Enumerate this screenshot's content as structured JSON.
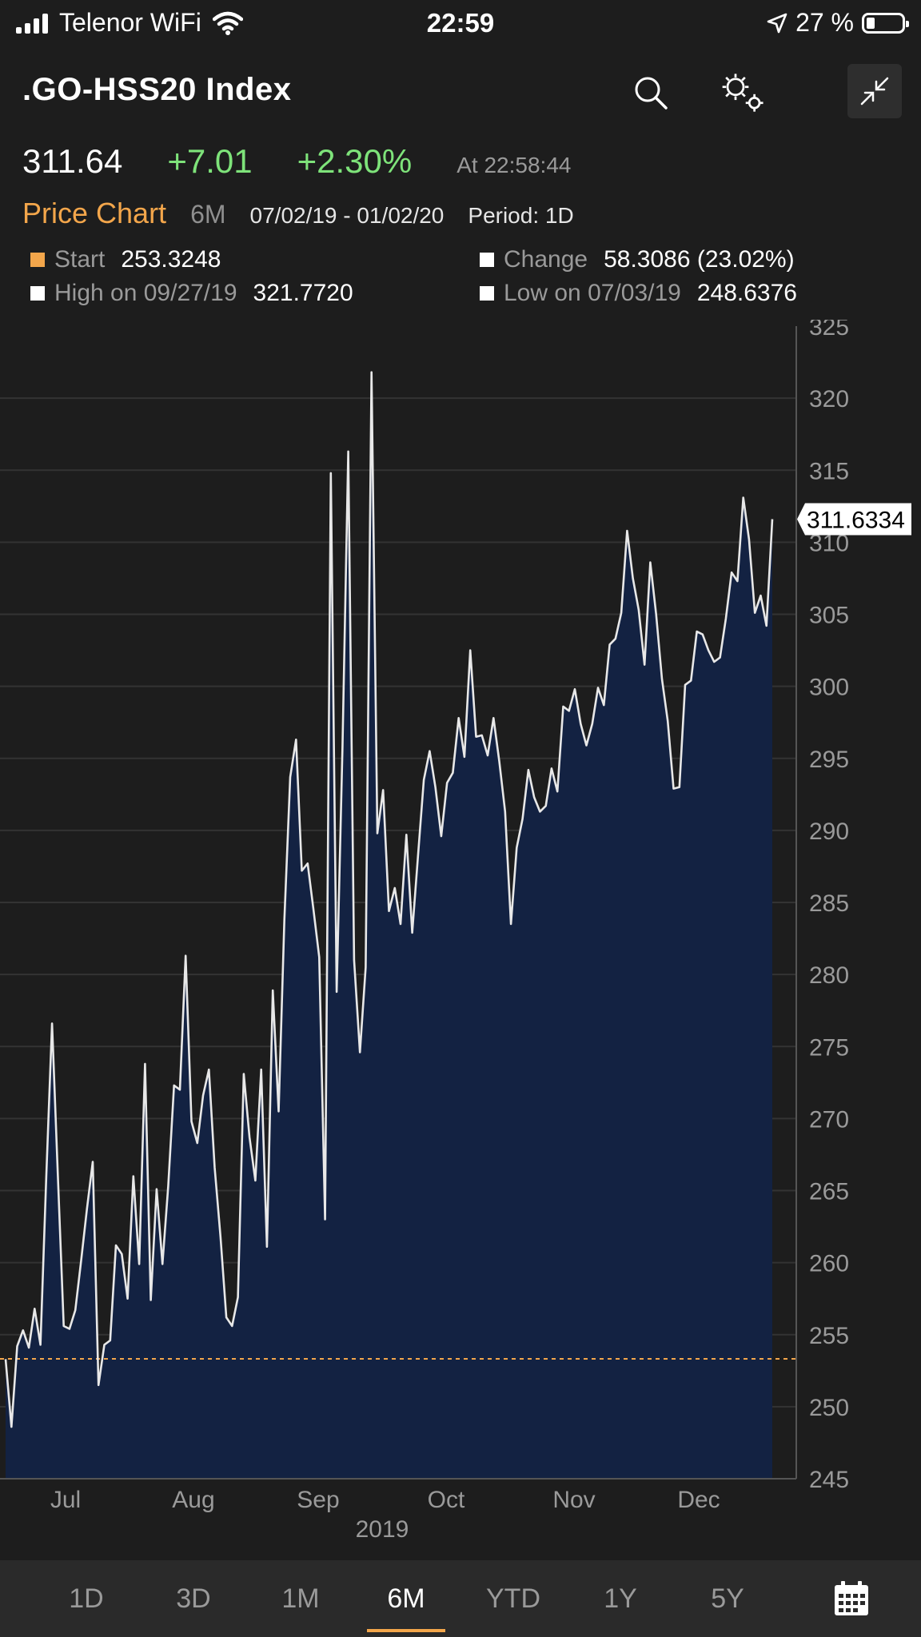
{
  "status_bar": {
    "carrier": "Telenor WiFi",
    "time": "22:59",
    "battery_pct": "27 %"
  },
  "header": {
    "title": ".GO-HSS20 Index"
  },
  "quote": {
    "last": "311.64",
    "change": "+7.01",
    "change_pct": "+2.30%",
    "as_of": "At 22:58:44"
  },
  "price_chart": {
    "title": "Price Chart",
    "range": "6M",
    "dates": "07/02/19 - 01/02/20",
    "period": "Period: 1D",
    "start_label": "Start",
    "start_value": "253.3248",
    "change_label": "Change",
    "change_value": "58.3086 (23.02%)",
    "high_label": "High on 09/27/19",
    "high_value": "321.7720",
    "low_label": "Low on 07/03/19",
    "low_value": "248.6376"
  },
  "colors": {
    "accent": "#f3a64b",
    "up": "#7ee37a",
    "fill": "#132242",
    "line": "#e8e8e8"
  },
  "chart_data": {
    "type": "area",
    "ylim": [
      245,
      325
    ],
    "y_ticks": [
      "325",
      "320",
      "315",
      "310",
      "305",
      "300",
      "295",
      "290",
      "285",
      "280",
      "275",
      "270",
      "265",
      "260",
      "255",
      "250",
      "245"
    ],
    "x_labels": [
      "Jul",
      "Aug",
      "Sep",
      "Oct",
      "Nov",
      "Dec"
    ],
    "x_year": "2019",
    "start_reference": 253.3248,
    "last_value_label": "311.6334",
    "values": [
      253.3,
      248.6,
      254.2,
      255.3,
      254.1,
      256.8,
      254.3,
      266.0,
      276.6,
      266.0,
      255.6,
      255.4,
      256.7,
      260.1,
      263.7,
      267.0,
      251.5,
      254.3,
      254.6,
      261.2,
      260.6,
      257.5,
      266.0,
      259.9,
      273.8,
      257.4,
      265.1,
      259.9,
      265.3,
      272.3,
      272.0,
      281.3,
      269.8,
      268.3,
      271.6,
      273.4,
      266.6,
      261.8,
      256.2,
      255.6,
      257.6,
      273.1,
      268.7,
      265.7,
      273.4,
      261.1,
      278.9,
      270.5,
      283.8,
      293.7,
      296.3,
      287.2,
      287.7,
      284.5,
      281.2,
      263.0,
      314.8,
      278.8,
      295.8,
      316.3,
      281.0,
      274.6,
      280.5,
      321.8,
      289.8,
      292.8,
      284.4,
      286.0,
      283.5,
      289.7,
      282.9,
      288.2,
      293.5,
      295.5,
      293.0,
      289.6,
      293.3,
      294.0,
      297.8,
      295.1,
      302.5,
      296.5,
      296.6,
      295.2,
      297.8,
      294.8,
      291.3,
      283.5,
      288.8,
      290.8,
      294.2,
      292.3,
      291.3,
      291.7,
      294.3,
      292.7,
      298.6,
      298.3,
      299.8,
      297.4,
      295.9,
      297.4,
      299.9,
      298.7,
      302.9,
      303.3,
      305.1,
      310.8,
      307.5,
      305.3,
      301.5,
      308.6,
      305.0,
      300.5,
      297.6,
      292.9,
      293.0,
      300.1,
      300.4,
      303.8,
      303.6,
      302.5,
      301.7,
      302.0,
      304.7,
      307.9,
      307.3,
      313.1,
      310.2,
      305.1,
      306.3,
      304.2,
      311.6
    ]
  },
  "tabs": [
    "1D",
    "3D",
    "1M",
    "6M",
    "YTD",
    "1Y",
    "5Y"
  ],
  "active_tab": "6M"
}
